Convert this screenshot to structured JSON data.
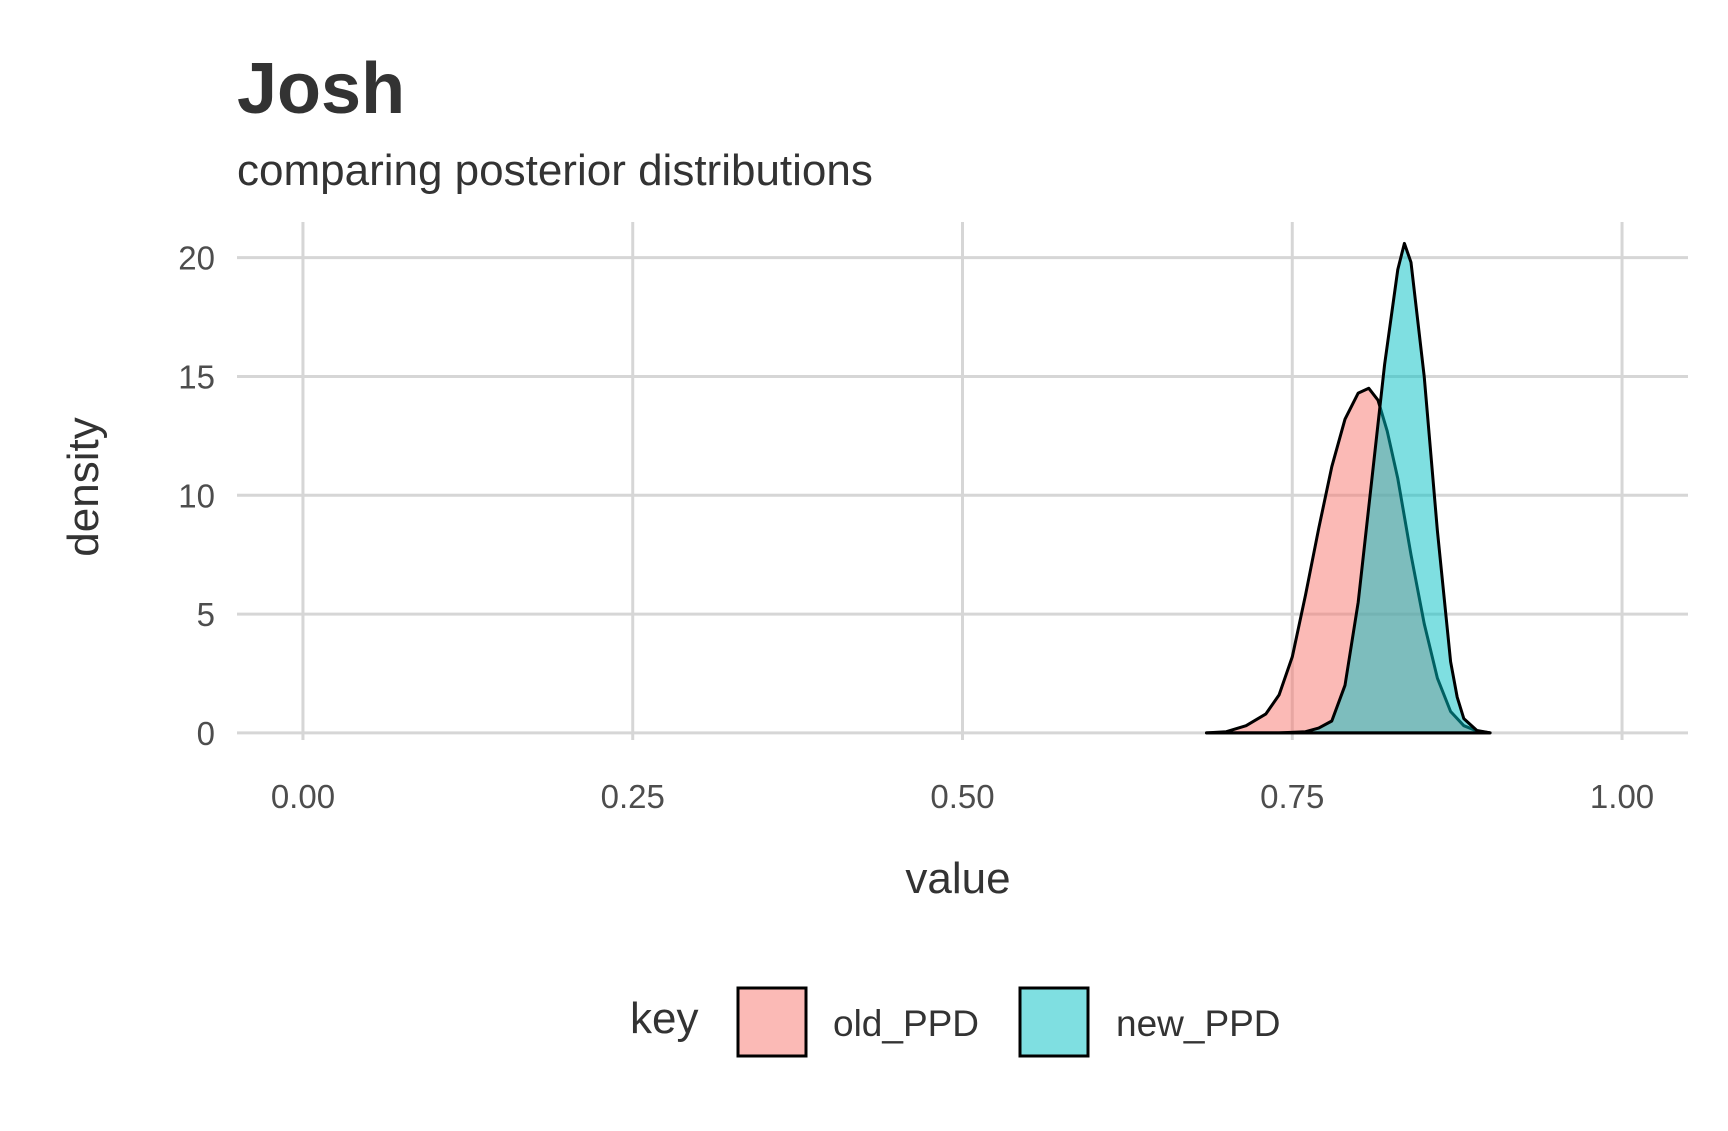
{
  "chart_data": {
    "type": "area",
    "title": "Josh",
    "subtitle": "comparing posterior distributions",
    "xlabel": "value",
    "ylabel": "density",
    "xlim": [
      -0.05,
      1.05
    ],
    "ylim": [
      -0.3,
      21.5
    ],
    "x_ticks": [
      0.0,
      0.25,
      0.5,
      0.75,
      1.0
    ],
    "x_tick_labels": [
      "0.00",
      "0.25",
      "0.50",
      "0.75",
      "1.00"
    ],
    "y_ticks": [
      0,
      5,
      10,
      15,
      20
    ],
    "y_tick_labels": [
      "0",
      "5",
      "10",
      "15",
      "20"
    ],
    "grid": true,
    "legend": {
      "title": "key",
      "position": "bottom",
      "entries": [
        "old_PPD",
        "new_PPD"
      ]
    },
    "series": [
      {
        "name": "old_PPD",
        "color": "#F8766D",
        "opacity": 0.5,
        "x": [
          0.685,
          0.7,
          0.715,
          0.73,
          0.74,
          0.75,
          0.76,
          0.77,
          0.78,
          0.79,
          0.8,
          0.808,
          0.815,
          0.822,
          0.83,
          0.84,
          0.85,
          0.86,
          0.87,
          0.88,
          0.89,
          0.9
        ],
        "y": [
          0,
          0.05,
          0.3,
          0.8,
          1.6,
          3.2,
          5.8,
          8.6,
          11.2,
          13.2,
          14.3,
          14.5,
          14.0,
          12.7,
          10.7,
          7.5,
          4.6,
          2.3,
          0.9,
          0.3,
          0.08,
          0
        ]
      },
      {
        "name": "new_PPD",
        "color": "#00BFC4",
        "opacity": 0.5,
        "x": [
          0.685,
          0.74,
          0.76,
          0.77,
          0.78,
          0.79,
          0.8,
          0.81,
          0.82,
          0.83,
          0.835,
          0.84,
          0.85,
          0.86,
          0.87,
          0.875,
          0.88,
          0.89,
          0.9
        ],
        "y": [
          0,
          0,
          0.05,
          0.2,
          0.5,
          2.0,
          5.5,
          10.5,
          15.5,
          19.5,
          20.6,
          19.8,
          15.0,
          8.5,
          3.0,
          1.5,
          0.6,
          0.1,
          0
        ]
      }
    ]
  }
}
